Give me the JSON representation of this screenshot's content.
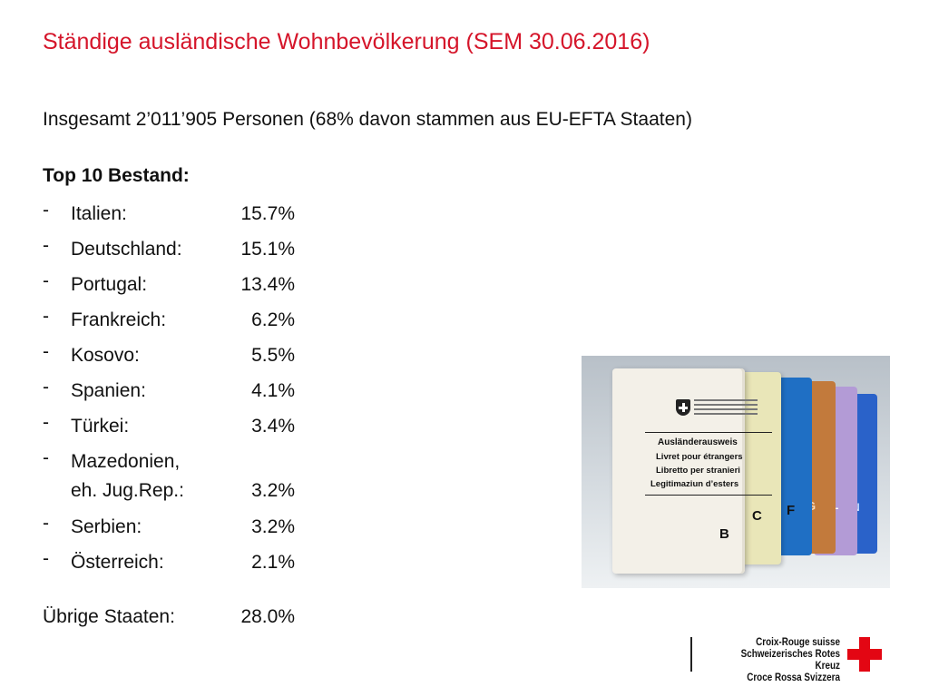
{
  "slide": {
    "title": "Ständige ausländische Wohnbevölkerung (SEM 30.06.2016)",
    "subtitle": "Insgesamt 2’011’905 Personen (68% davon stammen aus EU-EFTA Staaten)",
    "list_heading": "Top 10 Bestand:",
    "items": [
      {
        "dash": "-",
        "country": "Italien:",
        "value": "15.7%"
      },
      {
        "dash": "-",
        "country": "Deutschland:",
        "value": "15.1%"
      },
      {
        "dash": "-",
        "country": "Portugal:",
        "value": "13.4%"
      },
      {
        "dash": "-",
        "country": "Frankreich:",
        "value": "6.2%"
      },
      {
        "dash": "-",
        "country": "Kosovo:",
        "value": "5.5%"
      },
      {
        "dash": "-",
        "country": "Spanien:",
        "value": "4.1%"
      },
      {
        "dash": "-",
        "country": "Türkei:",
        "value": "3.4%"
      },
      {
        "dash": "-",
        "country": "Mazedonien,\neh. Jug.Rep.:",
        "value": "3.2%"
      },
      {
        "dash": "-",
        "country": "Serbien:",
        "value": "3.2%"
      },
      {
        "dash": "-",
        "country": "Österreich:",
        "value": "2.1%"
      }
    ],
    "rest": {
      "label": "Übrige Staaten:",
      "value": "28.0%"
    }
  },
  "photo": {
    "booklet_lines": [
      "Ausländerausweis",
      "Livret pour étrangers",
      "Libretto per stranieri",
      "Legitimaziun d’esters"
    ],
    "permit_letters": [
      "B",
      "C",
      "F",
      "G",
      "L",
      "N"
    ],
    "colors": {
      "B": "#f3f0e8",
      "C": "#e9e6b8",
      "F": "#1f6fc4",
      "G": "#c27a3c",
      "L": "#b39bd6",
      "N": "#2a62c9"
    }
  },
  "logo": {
    "lines": [
      "Croix-Rouge suisse",
      "Schweizerisches Rotes Kreuz",
      "Croce Rossa Svizzera"
    ],
    "cross_color": "#e30613"
  },
  "theme": {
    "title_color": "#d5152a"
  }
}
